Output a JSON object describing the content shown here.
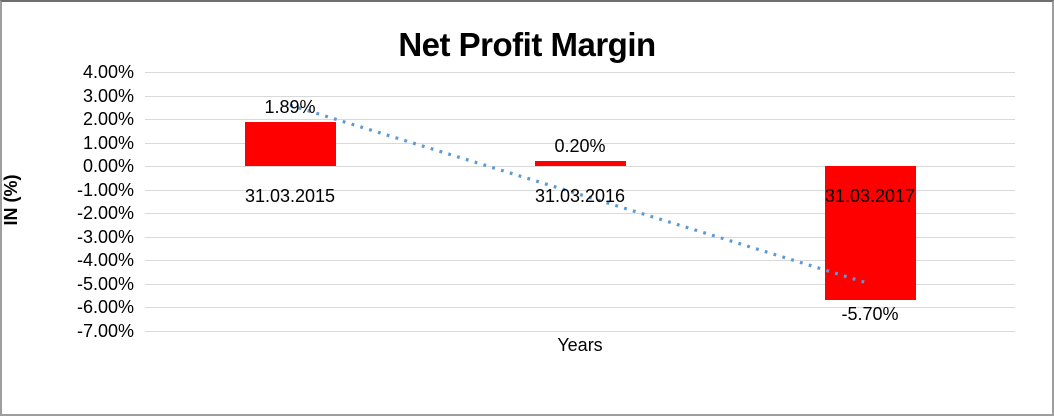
{
  "chart_data": {
    "type": "bar",
    "title": "Net Profit Margin",
    "categories": [
      "31.03.2015",
      "31.03.2016",
      "31.03.2017"
    ],
    "values": [
      1.89,
      0.2,
      -5.7
    ],
    "value_labels": [
      "1.89%",
      "0.20%",
      "-5.70%"
    ],
    "xlabel": "Years",
    "ylabel": "IN (%)",
    "ylim": [
      -7,
      4
    ],
    "yticks": [
      4,
      3,
      2,
      1,
      0,
      -1,
      -2,
      -3,
      -4,
      -5,
      -6,
      -7
    ],
    "ytick_labels": [
      "4.00%",
      "3.00%",
      "2.00%",
      "1.00%",
      "0.00%",
      "-1.00%",
      "-2.00%",
      "-3.00%",
      "-4.00%",
      "-5.00%",
      "-6.00%",
      "-7.00%"
    ],
    "grid": true,
    "legend_position": "none",
    "trendline": {
      "type": "linear",
      "style": "dotted",
      "spans": "first-to-last-category"
    },
    "colors": {
      "bar": "#FF0000",
      "trendline": "#5B9BD5",
      "gridline": "#D9D9D9",
      "text": "#000000",
      "background": "#FFFFFF"
    }
  }
}
